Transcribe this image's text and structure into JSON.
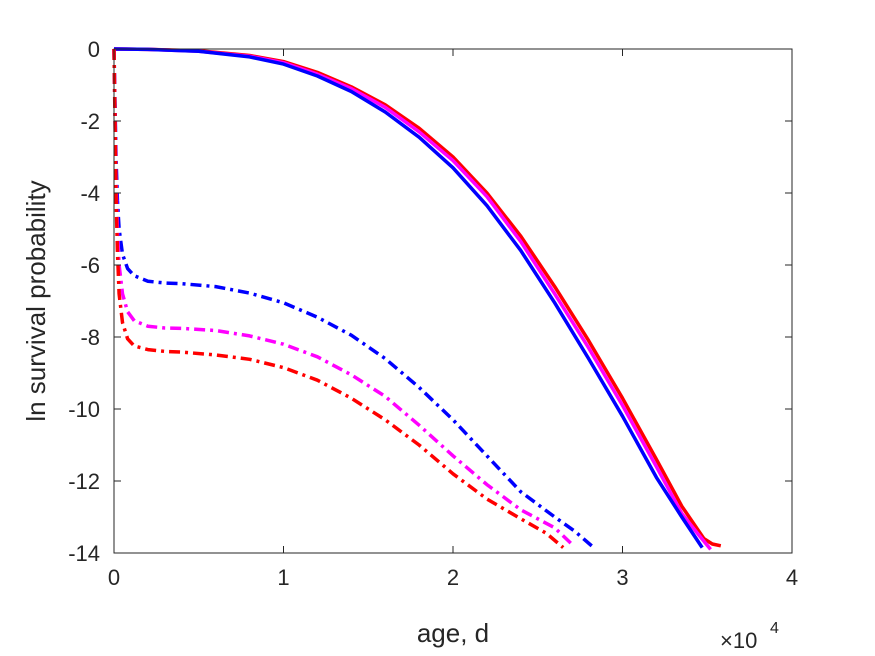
{
  "chart_data": {
    "type": "line",
    "title": "",
    "xlabel": "age, d",
    "ylabel": "ln survival probability",
    "x_exponent_label": "×10",
    "x_exponent_power": "4",
    "xlim": [
      0,
      40000
    ],
    "ylim": [
      -14,
      0
    ],
    "xticks": [
      0,
      10000,
      20000,
      30000,
      40000
    ],
    "xtick_labels": [
      "0",
      "1",
      "2",
      "3",
      "4"
    ],
    "yticks": [
      0,
      -2,
      -4,
      -6,
      -8,
      -10,
      -12,
      -14
    ],
    "ytick_labels": [
      "0",
      "-2",
      "-4",
      "-6",
      "-8",
      "-10",
      "-12",
      "-14"
    ],
    "grid": false,
    "legend": "none",
    "series": [
      {
        "color": "#ff0000",
        "style": "solid",
        "points": [
          [
            0,
            0
          ],
          [
            2000,
            -0.01
          ],
          [
            5000,
            -0.05
          ],
          [
            8000,
            -0.18
          ],
          [
            10000,
            -0.35
          ],
          [
            12000,
            -0.65
          ],
          [
            14000,
            -1.05
          ],
          [
            16000,
            -1.55
          ],
          [
            18000,
            -2.2
          ],
          [
            20000,
            -3.0
          ],
          [
            22000,
            -4.0
          ],
          [
            24000,
            -5.2
          ],
          [
            26000,
            -6.6
          ],
          [
            28000,
            -8.1
          ],
          [
            30000,
            -9.7
          ],
          [
            32000,
            -11.4
          ],
          [
            33500,
            -12.7
          ],
          [
            34800,
            -13.6
          ],
          [
            35300,
            -13.75
          ],
          [
            35800,
            -13.8
          ]
        ]
      },
      {
        "color": "#ff00ff",
        "style": "solid",
        "points": [
          [
            0,
            0
          ],
          [
            2000,
            -0.01
          ],
          [
            5000,
            -0.06
          ],
          [
            8000,
            -0.2
          ],
          [
            10000,
            -0.38
          ],
          [
            12000,
            -0.7
          ],
          [
            14000,
            -1.1
          ],
          [
            16000,
            -1.62
          ],
          [
            18000,
            -2.3
          ],
          [
            20000,
            -3.1
          ],
          [
            22000,
            -4.1
          ],
          [
            24000,
            -5.35
          ],
          [
            26000,
            -6.8
          ],
          [
            28000,
            -8.3
          ],
          [
            30000,
            -9.9
          ],
          [
            32000,
            -11.6
          ],
          [
            33500,
            -12.9
          ],
          [
            34500,
            -13.5
          ],
          [
            35200,
            -13.9
          ]
        ]
      },
      {
        "color": "#0000ff",
        "style": "solid",
        "points": [
          [
            0,
            0
          ],
          [
            2000,
            -0.01
          ],
          [
            5000,
            -0.06
          ],
          [
            8000,
            -0.22
          ],
          [
            10000,
            -0.42
          ],
          [
            12000,
            -0.75
          ],
          [
            14000,
            -1.18
          ],
          [
            16000,
            -1.75
          ],
          [
            18000,
            -2.45
          ],
          [
            20000,
            -3.3
          ],
          [
            22000,
            -4.35
          ],
          [
            24000,
            -5.6
          ],
          [
            26000,
            -7.05
          ],
          [
            28000,
            -8.6
          ],
          [
            30000,
            -10.2
          ],
          [
            32000,
            -11.9
          ],
          [
            33500,
            -13.0
          ],
          [
            34700,
            -13.85
          ]
        ]
      },
      {
        "color": "#0000ff",
        "style": "dashdot",
        "points": [
          [
            0,
            0
          ],
          [
            60,
            -1.5
          ],
          [
            120,
            -3.0
          ],
          [
            200,
            -4.2
          ],
          [
            300,
            -5.0
          ],
          [
            500,
            -5.7
          ],
          [
            800,
            -6.1
          ],
          [
            1200,
            -6.3
          ],
          [
            2000,
            -6.45
          ],
          [
            3000,
            -6.5
          ],
          [
            4000,
            -6.52
          ],
          [
            6000,
            -6.6
          ],
          [
            8000,
            -6.78
          ],
          [
            10000,
            -7.05
          ],
          [
            12000,
            -7.45
          ],
          [
            14000,
            -7.95
          ],
          [
            16000,
            -8.6
          ],
          [
            18000,
            -9.4
          ],
          [
            20000,
            -10.3
          ],
          [
            22000,
            -11.3
          ],
          [
            24000,
            -12.3
          ],
          [
            26000,
            -13.0
          ],
          [
            27200,
            -13.4
          ],
          [
            28300,
            -13.85
          ]
        ]
      },
      {
        "color": "#ff00ff",
        "style": "dashdot",
        "points": [
          [
            0,
            0
          ],
          [
            60,
            -1.8
          ],
          [
            120,
            -3.6
          ],
          [
            200,
            -5.0
          ],
          [
            300,
            -6.0
          ],
          [
            500,
            -6.8
          ],
          [
            800,
            -7.3
          ],
          [
            1200,
            -7.55
          ],
          [
            2000,
            -7.7
          ],
          [
            3000,
            -7.75
          ],
          [
            4000,
            -7.76
          ],
          [
            6000,
            -7.82
          ],
          [
            8000,
            -7.97
          ],
          [
            10000,
            -8.2
          ],
          [
            12000,
            -8.55
          ],
          [
            14000,
            -9.05
          ],
          [
            16000,
            -9.65
          ],
          [
            18000,
            -10.45
          ],
          [
            20000,
            -11.3
          ],
          [
            22000,
            -12.1
          ],
          [
            24000,
            -12.8
          ],
          [
            26000,
            -13.3
          ],
          [
            27000,
            -13.75
          ]
        ]
      },
      {
        "color": "#ff0000",
        "style": "dashdot",
        "points": [
          [
            0,
            0
          ],
          [
            60,
            -2.0
          ],
          [
            120,
            -4.0
          ],
          [
            200,
            -5.6
          ],
          [
            300,
            -6.8
          ],
          [
            500,
            -7.6
          ],
          [
            800,
            -8.05
          ],
          [
            1200,
            -8.25
          ],
          [
            2000,
            -8.35
          ],
          [
            3000,
            -8.4
          ],
          [
            4000,
            -8.42
          ],
          [
            6000,
            -8.5
          ],
          [
            8000,
            -8.62
          ],
          [
            10000,
            -8.85
          ],
          [
            12000,
            -9.2
          ],
          [
            14000,
            -9.7
          ],
          [
            16000,
            -10.3
          ],
          [
            18000,
            -11.0
          ],
          [
            20000,
            -11.8
          ],
          [
            22000,
            -12.5
          ],
          [
            24000,
            -13.05
          ],
          [
            25500,
            -13.45
          ],
          [
            26500,
            -13.85
          ]
        ]
      }
    ]
  }
}
